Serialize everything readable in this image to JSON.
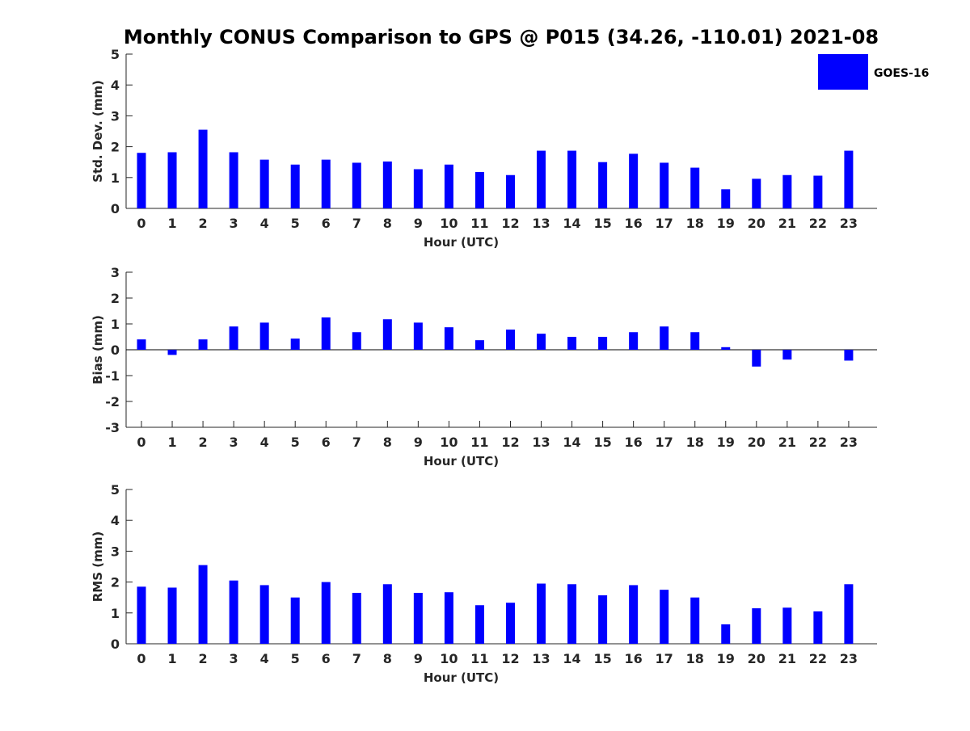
{
  "title": "Monthly CONUS Comparison to GPS @ P015 (34.26, -110.01) 2021-08",
  "legend": {
    "label": "GOES-16",
    "color": "#0000ff"
  },
  "chart_data": [
    {
      "type": "bar",
      "ylabel": "Std. Dev. (mm)",
      "xlabel": "Hour (UTC)",
      "ylim": [
        0,
        5
      ],
      "yticks": [
        "0",
        "1",
        "2",
        "3",
        "4",
        "5"
      ],
      "categories": [
        "0",
        "1",
        "2",
        "3",
        "4",
        "5",
        "6",
        "7",
        "8",
        "9",
        "10",
        "11",
        "12",
        "13",
        "14",
        "15",
        "16",
        "17",
        "18",
        "19",
        "20",
        "21",
        "22",
        "23"
      ],
      "series": [
        {
          "name": "GOES-16",
          "values": [
            1.8,
            1.82,
            2.55,
            1.82,
            1.58,
            1.42,
            1.58,
            1.48,
            1.52,
            1.27,
            1.42,
            1.18,
            1.08,
            1.87,
            1.87,
            1.5,
            1.77,
            1.48,
            1.32,
            0.62,
            0.96,
            1.08,
            1.06,
            1.87
          ]
        }
      ]
    },
    {
      "type": "bar",
      "ylabel": "Bias (mm)",
      "xlabel": "Hour (UTC)",
      "ylim": [
        -3,
        3
      ],
      "yticks": [
        "-3",
        "-2",
        "-1",
        "0",
        "1",
        "2",
        "3"
      ],
      "zero_line": true,
      "categories": [
        "0",
        "1",
        "2",
        "3",
        "4",
        "5",
        "6",
        "7",
        "8",
        "9",
        "10",
        "11",
        "12",
        "13",
        "14",
        "15",
        "16",
        "17",
        "18",
        "19",
        "20",
        "21",
        "22",
        "23"
      ],
      "series": [
        {
          "name": "GOES-16",
          "values": [
            0.4,
            -0.2,
            0.4,
            0.9,
            1.05,
            0.43,
            1.25,
            0.68,
            1.18,
            1.05,
            0.87,
            0.37,
            0.78,
            0.62,
            0.5,
            0.5,
            0.68,
            0.9,
            0.68,
            0.1,
            -0.65,
            -0.38,
            0.0,
            -0.42
          ]
        }
      ]
    },
    {
      "type": "bar",
      "ylabel": "RMS (mm)",
      "xlabel": "Hour (UTC)",
      "ylim": [
        0,
        5
      ],
      "yticks": [
        "0",
        "1",
        "2",
        "3",
        "4",
        "5"
      ],
      "categories": [
        "0",
        "1",
        "2",
        "3",
        "4",
        "5",
        "6",
        "7",
        "8",
        "9",
        "10",
        "11",
        "12",
        "13",
        "14",
        "15",
        "16",
        "17",
        "18",
        "19",
        "20",
        "21",
        "22",
        "23"
      ],
      "series": [
        {
          "name": "GOES-16",
          "values": [
            1.85,
            1.82,
            2.55,
            2.05,
            1.9,
            1.5,
            2.0,
            1.65,
            1.93,
            1.65,
            1.67,
            1.25,
            1.33,
            1.95,
            1.93,
            1.57,
            1.9,
            1.75,
            1.5,
            0.63,
            1.15,
            1.17,
            1.05,
            1.93
          ]
        }
      ]
    }
  ]
}
